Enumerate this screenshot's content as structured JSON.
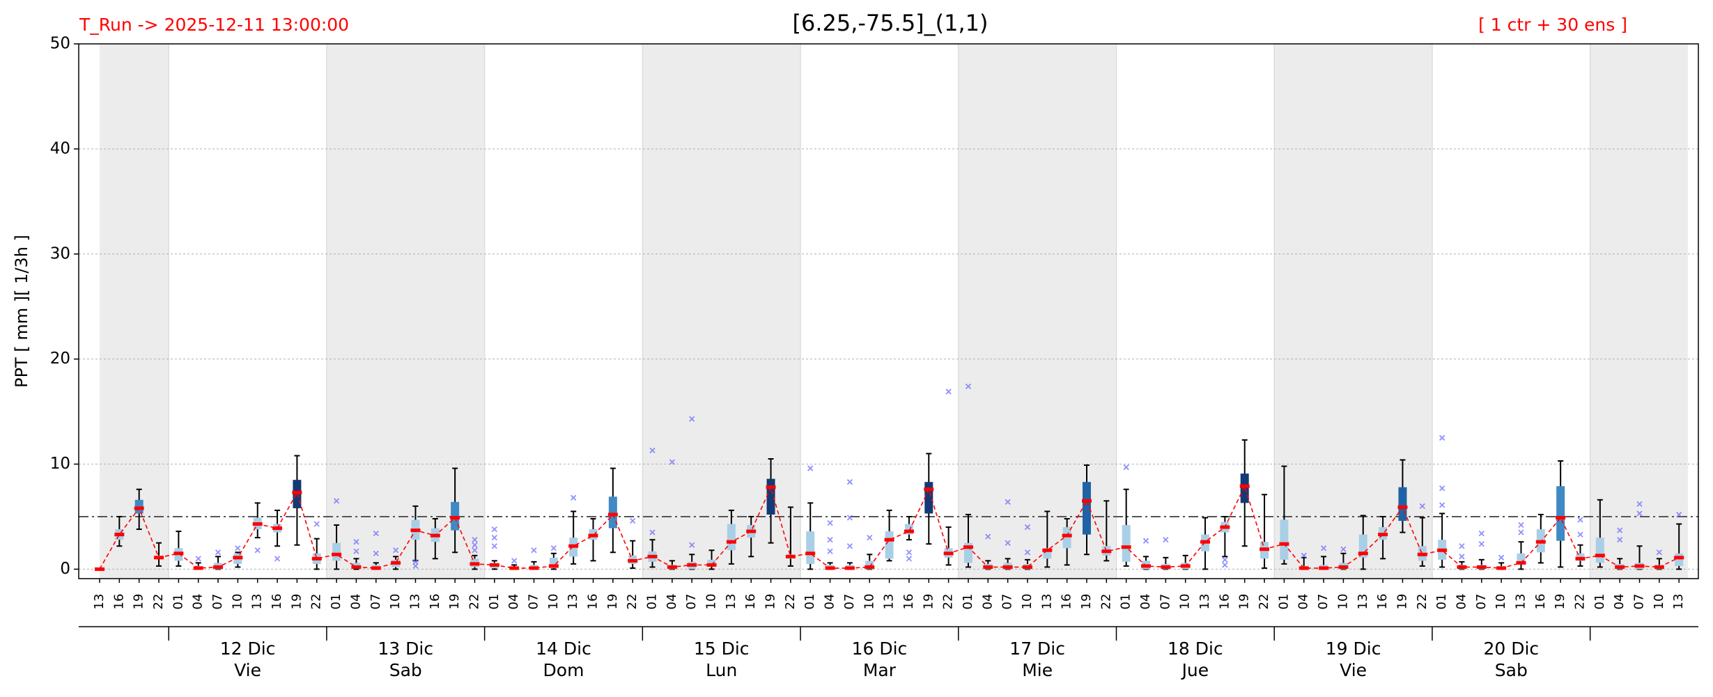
{
  "chart_data": {
    "type": "boxplot",
    "title": "[6.25,-75.5]_(1,1)",
    "run_label": "T_Run -> 2025-12-11  13:00:00",
    "ensemble_label": "[ 1 ctr + 30 ens ]",
    "y_label": "PPT  [ mm ][ 1/3h ]",
    "ylim": [
      -0.9,
      50
    ],
    "yticks": [
      0,
      10,
      20,
      30,
      40,
      50
    ],
    "grid": true,
    "threshold": 5,
    "categories": [
      "13",
      "16",
      "19",
      "22",
      "01",
      "04",
      "07",
      "10",
      "13",
      "16",
      "19",
      "22",
      "01",
      "04",
      "07",
      "10",
      "13",
      "16",
      "19",
      "22",
      "01",
      "04",
      "07",
      "10",
      "13",
      "16",
      "19",
      "22",
      "01",
      "04",
      "07",
      "10",
      "13",
      "16",
      "19",
      "22",
      "01",
      "04",
      "07",
      "10",
      "13",
      "16",
      "19",
      "22",
      "01",
      "04",
      "07",
      "10",
      "13",
      "16",
      "19",
      "22",
      "01",
      "04",
      "07",
      "10",
      "13",
      "16",
      "19",
      "22",
      "01",
      "04",
      "07",
      "10",
      "13",
      "16",
      "19",
      "22",
      "01",
      "04",
      "07",
      "10",
      "13",
      "16",
      "19",
      "22",
      "01",
      "04",
      "07",
      "10",
      "13"
    ],
    "days": [
      {
        "date": "12 Dic",
        "weekday": "Vie"
      },
      {
        "date": "13 Dic",
        "weekday": "Sab"
      },
      {
        "date": "14 Dic",
        "weekday": "Dom"
      },
      {
        "date": "15 Dic",
        "weekday": "Lun"
      },
      {
        "date": "16 Dic",
        "weekday": "Mar"
      },
      {
        "date": "17 Dic",
        "weekday": "Mie"
      },
      {
        "date": "18 Dic",
        "weekday": "Jue"
      },
      {
        "date": "19 Dic",
        "weekday": "Vie"
      },
      {
        "date": "20 Dic",
        "weekday": "Sab"
      }
    ],
    "whisker_low": [
      0,
      2.2,
      3.8,
      0.3,
      0.3,
      0,
      0,
      0.2,
      3.0,
      2.2,
      2.3,
      0,
      0,
      0,
      0,
      0,
      0.8,
      1,
      1.6,
      0,
      0,
      0,
      0,
      0,
      0.5,
      0.8,
      1.6,
      0.1,
      0.2,
      0,
      0,
      0,
      0.5,
      1.2,
      2.5,
      0.3,
      0,
      0,
      0,
      0,
      0.8,
      2.8,
      2.4,
      0.4,
      0.2,
      0,
      0,
      0,
      0.2,
      0.4,
      1.4,
      0.8,
      0.3,
      0,
      0,
      0,
      0,
      1.2,
      2.2,
      0.1,
      0.5,
      0,
      0,
      0,
      0,
      1.0,
      3.5,
      0.3,
      0.2,
      0,
      0,
      0,
      0,
      0.6,
      0.2,
      0.3,
      0.2,
      0,
      0,
      0,
      0
    ],
    "q1": [
      0,
      2.8,
      5.3,
      1.0,
      0.8,
      0,
      0,
      0.5,
      3.8,
      3.5,
      5.8,
      0.5,
      0.8,
      0.1,
      0,
      0.2,
      2.8,
      2.6,
      3.7,
      0.2,
      0.1,
      0,
      0,
      0.1,
      1.2,
      2.8,
      3.9,
      0.5,
      0.7,
      0,
      0,
      0.3,
      1.8,
      3.0,
      5.2,
      1.0,
      0.5,
      0,
      0,
      0,
      1.0,
      3.3,
      5.3,
      1.1,
      0.6,
      0,
      0,
      0,
      1,
      2,
      3.3,
      1.3,
      0.7,
      0,
      0,
      0,
      1.7,
      3.5,
      6.3,
      1.0,
      0.9,
      0,
      0,
      0,
      1.1,
      2.8,
      4.6,
      0.8,
      0.9,
      0,
      0,
      0,
      0.5,
      1.6,
      2.7,
      0.8,
      0.6,
      0,
      0,
      0,
      0.3
    ],
    "median": [
      0,
      3.3,
      5.8,
      1.1,
      1.5,
      0.1,
      0.2,
      1.1,
      4.3,
      3.9,
      7.3,
      1,
      1.4,
      0.2,
      0.1,
      0.6,
      3.7,
      3.2,
      4.9,
      0.5,
      0.4,
      0.1,
      0.1,
      0.3,
      2.2,
      3.2,
      5.2,
      0.8,
      1.2,
      0.2,
      0.4,
      0.4,
      2.6,
      3.6,
      7.8,
      1.2,
      1.5,
      0.1,
      0.1,
      0.2,
      2.8,
      3.6,
      7.6,
      1.5,
      2.1,
      0.2,
      0.2,
      0.2,
      1.8,
      3.2,
      6.5,
      1.7,
      2.1,
      0.3,
      0.2,
      0.3,
      2.6,
      4,
      7.9,
      1.9,
      2.4,
      0.1,
      0.1,
      0.2,
      1.5,
      3.3,
      5.9,
      1.4,
      1.8,
      0.2,
      0.2,
      0.1,
      0.6,
      2.6,
      4.9,
      1,
      1.3,
      0.2,
      0.3,
      0.2,
      1.1
    ],
    "q3": [
      0,
      3.8,
      6.6,
      1.3,
      2,
      0.3,
      0.6,
      1.5,
      4.9,
      4.3,
      8.5,
      1.5,
      2.5,
      0.6,
      0.4,
      0.9,
      4.7,
      3.9,
      6.4,
      1,
      0.6,
      0.2,
      0.4,
      1.1,
      3,
      3.8,
      6.9,
      1.3,
      1.7,
      0.4,
      0.7,
      0.9,
      4.3,
      4.2,
      8.6,
      1.4,
      3.6,
      0.4,
      0.4,
      0.8,
      3.6,
      4.3,
      8.3,
      2,
      2.5,
      0.5,
      0.6,
      0.5,
      2,
      4,
      8.3,
      2.2,
      4.2,
      0.8,
      0.5,
      0.6,
      3.3,
      4.5,
      9.1,
      2.6,
      4.7,
      0.3,
      0.4,
      0.6,
      3.3,
      4,
      7.8,
      2.2,
      2.8,
      0.4,
      0.4,
      0.3,
      1.5,
      3.8,
      7.9,
      1.5,
      3,
      0.5,
      0.6,
      0.4,
      1.5
    ],
    "whisker_high": [
      0,
      5,
      7.6,
      2.5,
      3.6,
      0.6,
      1.2,
      1.6,
      6.3,
      5.6,
      10.8,
      2.9,
      4.2,
      1,
      0.6,
      1.2,
      6,
      4.8,
      9.6,
      1.3,
      0.8,
      0.4,
      0.7,
      1.5,
      5.5,
      4.8,
      9.6,
      2.7,
      2.8,
      0.8,
      1.4,
      1.8,
      5.6,
      5,
      10.5,
      5.9,
      6.3,
      0.6,
      0.6,
      1.4,
      5.6,
      5,
      11,
      4,
      5.2,
      0.8,
      1.0,
      0.9,
      5.5,
      4.8,
      9.9,
      6.5,
      7.6,
      1.2,
      1.1,
      1.3,
      4.9,
      5,
      12.3,
      7.1,
      9.8,
      1.1,
      1.2,
      1.5,
      5.1,
      5,
      10.4,
      4.9,
      5.3,
      0.7,
      0.9,
      0.6,
      2.6,
      5.2,
      10.3,
      2.3,
      6.6,
      1,
      2.2,
      1,
      4.3
    ],
    "fliers": [
      [],
      [],
      [],
      [],
      [],
      [
        1.0
      ],
      [
        1.6
      ],
      [
        2
      ],
      [
        1.8
      ],
      [
        1.0
      ],
      [],
      [
        4.3
      ],
      [
        6.5
      ],
      [
        1.7,
        2.6
      ],
      [
        1.5,
        3.4
      ],
      [
        1.8
      ],
      [
        0.3,
        0.7
      ],
      [],
      [],
      [
        1.8,
        2.3,
        2.8
      ],
      [
        2.2,
        3,
        3.8
      ],
      [
        0.8
      ],
      [
        1.8
      ],
      [
        2
      ],
      [
        6.8
      ],
      [],
      [],
      [
        4.6
      ],
      [
        3.5,
        11.3
      ],
      [
        10.2
      ],
      [
        2.3,
        14.3
      ],
      [],
      [],
      [],
      [],
      [],
      [
        9.6
      ],
      [
        1.7,
        2.8,
        4.4
      ],
      [
        2.2,
        4.9,
        8.3
      ],
      [
        3
      ],
      [],
      [
        1.0,
        1.6
      ],
      [],
      [
        16.9
      ],
      [
        17.4
      ],
      [
        3.1
      ],
      [
        2.5,
        6.4
      ],
      [
        1.6,
        4
      ],
      [],
      [],
      [],
      [],
      [
        9.7
      ],
      [
        2.7
      ],
      [
        2.8
      ],
      [],
      [],
      [
        0.4,
        0.9
      ],
      [],
      [],
      [],
      [
        1.3
      ],
      [
        2
      ],
      [
        1.9
      ],
      [],
      [],
      [],
      [
        6
      ],
      [
        6.1,
        7.7,
        12.5
      ],
      [
        1.2,
        2.2
      ],
      [
        2.4,
        3.4
      ],
      [
        1.1
      ],
      [
        3.5,
        4.2
      ],
      [],
      [],
      [
        3.3,
        4.7
      ],
      [],
      [
        2.8,
        3.7
      ],
      [
        5.3,
        6.2
      ],
      [
        1.6
      ],
      [
        5.2
      ]
    ],
    "box_colors": [
      "#a9cfe6",
      "#a9cfe6",
      "#3f8ac4",
      "#a9cfe6",
      "#a9cfe6",
      "#a9cfe6",
      "#a9cfe6",
      "#a9cfe6",
      "#a9cfe6",
      "#a9cfe6",
      "#143a75",
      "#a9cfe6",
      "#a9cfe6",
      "#a9cfe6",
      "#a9cfe6",
      "#a9cfe6",
      "#a9cfe6",
      "#a9cfe6",
      "#3f8ac4",
      "#a9cfe6",
      "#a9cfe6",
      "#a9cfe6",
      "#a9cfe6",
      "#a9cfe6",
      "#a9cfe6",
      "#a9cfe6",
      "#3f8ac4",
      "#a9cfe6",
      "#a9cfe6",
      "#a9cfe6",
      "#a9cfe6",
      "#a9cfe6",
      "#a9cfe6",
      "#a9cfe6",
      "#143a75",
      "#a9cfe6",
      "#a9cfe6",
      "#a9cfe6",
      "#a9cfe6",
      "#a9cfe6",
      "#a9cfe6",
      "#a9cfe6",
      "#143a75",
      "#a9cfe6",
      "#a9cfe6",
      "#a9cfe6",
      "#a9cfe6",
      "#a9cfe6",
      "#a9cfe6",
      "#a9cfe6",
      "#1f63a6",
      "#a9cfe6",
      "#a9cfe6",
      "#a9cfe6",
      "#a9cfe6",
      "#a9cfe6",
      "#a9cfe6",
      "#a9cfe6",
      "#143a75",
      "#a9cfe6",
      "#a9cfe6",
      "#a9cfe6",
      "#a9cfe6",
      "#a9cfe6",
      "#a9cfe6",
      "#a9cfe6",
      "#1f63a6",
      "#a9cfe6",
      "#a9cfe6",
      "#a9cfe6",
      "#a9cfe6",
      "#a9cfe6",
      "#a9cfe6",
      "#a9cfe6",
      "#3f8ac4",
      "#a9cfe6",
      "#a9cfe6",
      "#a9cfe6",
      "#a9cfe6",
      "#a9cfe6",
      "#a9cfe6"
    ],
    "median_color": "#ff0000",
    "flier_color": "#6b6bff",
    "shade_color": "#ececec"
  }
}
